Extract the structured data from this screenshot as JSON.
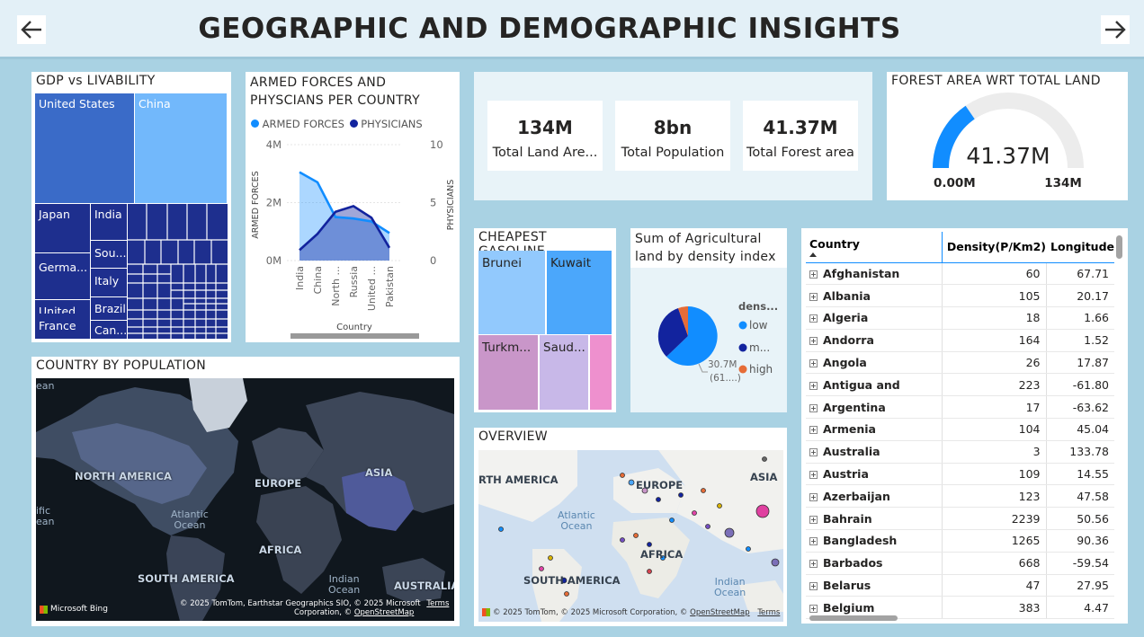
{
  "header": {
    "title": "GEOGRAPHIC AND DEMOGRAPHIC INSIGHTS"
  },
  "treemap": {
    "title": "GDP vs LIVABILITY",
    "cells": [
      "United States",
      "China",
      "Japan",
      "India",
      "Sou...",
      "Germa...",
      "Italy",
      "United...",
      "Brazil",
      "France",
      "Can..."
    ]
  },
  "armed": {
    "title_line1": "ARMED FORCES AND",
    "title_line2": "PHYSCIANS PER COUNTRY",
    "legend": [
      "ARMED FORCES",
      "PHYSICIANS"
    ],
    "y_left_label": "ARMED FORCES",
    "y_right_label": "PHYSICIANS",
    "x_label": "Country",
    "y_left_ticks": [
      "4M",
      "2M",
      "0M"
    ],
    "y_right_ticks": [
      "10",
      "5",
      "0"
    ]
  },
  "chart_data": {
    "type": "area",
    "categories": [
      "India",
      "China",
      "North ...",
      "Russia",
      "United ...",
      "Pakistan"
    ],
    "series": [
      {
        "name": "ARMED FORCES",
        "axis": "left",
        "values": [
          3.05,
          2.7,
          1.5,
          1.45,
          1.35,
          0.95
        ]
      },
      {
        "name": "PHYSICIANS",
        "axis": "right",
        "values": [
          0.9,
          2.3,
          4.2,
          4.7,
          3.7,
          1.1
        ]
      }
    ],
    "title": "ARMED FORCES AND PHYSCIANS PER COUNTRY",
    "xlabel": "Country",
    "ylabel": "ARMED FORCES",
    "y2label": "PHYSICIANS",
    "ylim": [
      0,
      4
    ],
    "y2lim": [
      0,
      10
    ]
  },
  "kpis": [
    {
      "value": "134M",
      "label": "Total Land Are..."
    },
    {
      "value": "8bn",
      "label": "Total Population"
    },
    {
      "value": "41.37M",
      "label": "Total Forest area"
    }
  ],
  "gauge": {
    "title": "FOREST AREA WRT TOTAL LAND",
    "value": "41.37M",
    "min": "0.00M",
    "max": "134M",
    "fraction": 0.309
  },
  "gasoline": {
    "title": "CHEAPEST GASOLINE",
    "cells": [
      "Brunei",
      "Kuwait",
      "Turkm...",
      "Saud..."
    ]
  },
  "pie": {
    "title_line1": "Sum of Agricultural",
    "title_line2": "land by density index",
    "legend_title": "dens...",
    "legend": [
      "low",
      "m...",
      "high"
    ],
    "label_value": "30.7M",
    "label_pct": "(61....)"
  },
  "table": {
    "headers": [
      "Country",
      "Density(P/Km2)",
      "Longitude"
    ],
    "rows": [
      [
        "Afghanistan",
        "60",
        "67.71"
      ],
      [
        "Albania",
        "105",
        "20.17"
      ],
      [
        "Algeria",
        "18",
        "1.66"
      ],
      [
        "Andorra",
        "164",
        "1.52"
      ],
      [
        "Angola",
        "26",
        "17.87"
      ],
      [
        "Antigua and",
        "223",
        "-61.80"
      ],
      [
        "Argentina",
        "17",
        "-63.62"
      ],
      [
        "Armenia",
        "104",
        "45.04"
      ],
      [
        "Australia",
        "3",
        "133.78"
      ],
      [
        "Austria",
        "109",
        "14.55"
      ],
      [
        "Azerbaijan",
        "123",
        "47.58"
      ],
      [
        "Bahrain",
        "2239",
        "50.56"
      ],
      [
        "Bangladesh",
        "1265",
        "90.36"
      ],
      [
        "Barbados",
        "668",
        "-59.54"
      ],
      [
        "Belarus",
        "47",
        "27.95"
      ],
      [
        "Belgium",
        "383",
        "4.47"
      ]
    ]
  },
  "population_map": {
    "title": "COUNTRY BY POPULATION",
    "labels": [
      "NORTH AMERICA",
      "EUROPE",
      "ASIA",
      "AFRICA",
      "SOUTH AMERICA",
      "AUSTRALIA"
    ],
    "oceans": [
      "Atlantic",
      "Ocean",
      "Indian",
      "Ocean",
      "ific",
      "ean",
      "ean"
    ],
    "brand": "Microsoft Bing",
    "credit_line1": "© 2025 TomTom, Earthstar Geographics SIO, © 2025 Microsoft",
    "credit_terms": "Terms",
    "credit_line2": "Corporation, ©",
    "credit_osm": "OpenStreetMap"
  },
  "overview_map": {
    "title": "OVERVIEW",
    "labels": [
      "RTH AMERICA",
      "EUROPE",
      "ASIA",
      "AFRICA",
      "SOUTH AMERICA"
    ],
    "oceans": [
      "Atlantic",
      "Ocean",
      "Indian",
      "Ocean"
    ],
    "credit": "© 2025 TomTom, © 2025 Microsoft Corporation, ©",
    "credit_osm": "OpenStreetMap",
    "credit_terms": "Terms"
  },
  "colors": {
    "page_bg": "#a9d2e3",
    "header_bg": "#e3f0f7",
    "navy": "#12239e",
    "blue": "#118dff",
    "orange": "#e66c37"
  }
}
